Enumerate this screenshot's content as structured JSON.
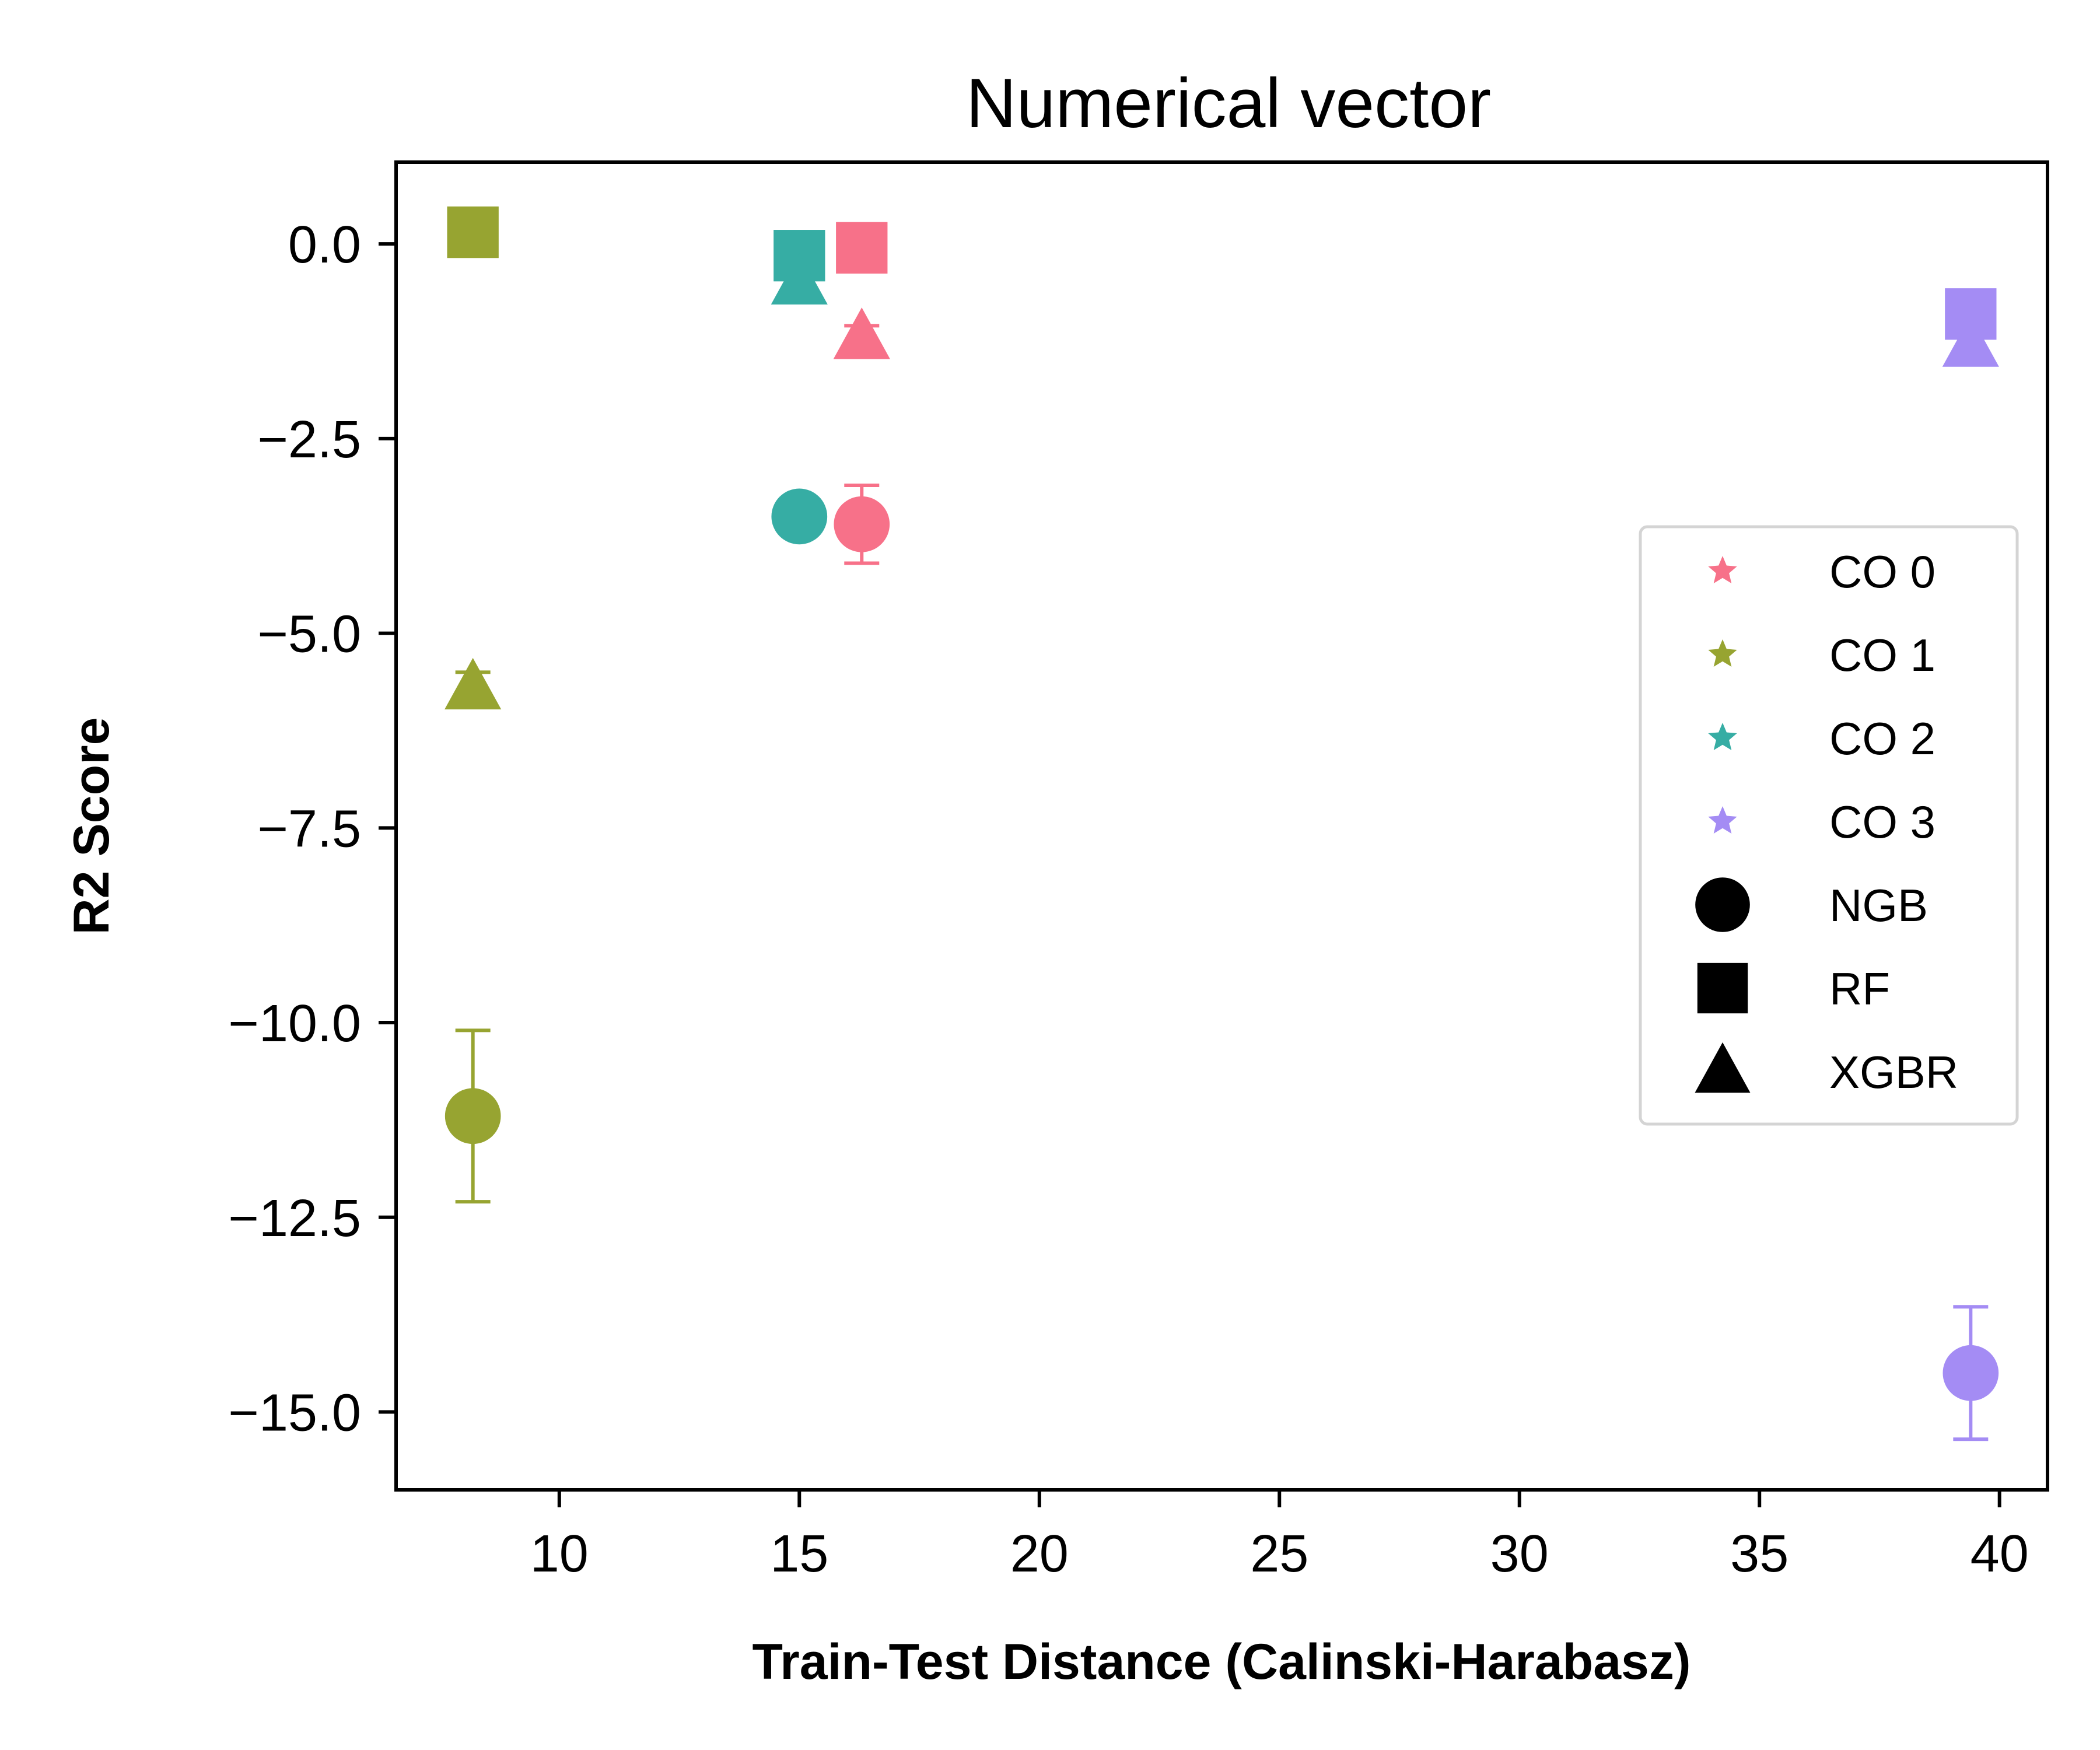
{
  "chart_data": {
    "type": "scatter",
    "title": "Numerical vector",
    "xlabel": "Train-Test Distance (Calinski-Harabasz)",
    "ylabel": "R2 Score",
    "xlim": [
      6.6,
      41.0
    ],
    "ylim": [
      -16.0,
      1.05
    ],
    "xticks": [
      10,
      15,
      20,
      25,
      30,
      35,
      40
    ],
    "yticks": [
      0.0,
      -2.5,
      -5.0,
      -7.5,
      -10.0,
      -12.5,
      -15.0
    ],
    "xtick_labels": [
      "10",
      "15",
      "20",
      "25",
      "30",
      "35",
      "40"
    ],
    "ytick_labels": [
      "0.0",
      "−2.5",
      "−5.0",
      "−7.5",
      "−10.0",
      "−12.5",
      "−15.0"
    ],
    "grid": false,
    "legend_position": "center-right",
    "groups": [
      {
        "name": "CO 0",
        "color": "#f77189"
      },
      {
        "name": "CO 1",
        "color": "#97a431"
      },
      {
        "name": "CO 2",
        "color": "#36ada4"
      },
      {
        "name": "CO 3",
        "color": "#a48cf4"
      }
    ],
    "models": [
      {
        "name": "NGB",
        "marker": "circle"
      },
      {
        "name": "RF",
        "marker": "square"
      },
      {
        "name": "XGBR",
        "marker": "triangle"
      }
    ],
    "points": [
      {
        "group": "CO 0",
        "model": "NGB",
        "x": 16.3,
        "y": -3.6,
        "err": 0.5
      },
      {
        "group": "CO 0",
        "model": "RF",
        "x": 16.3,
        "y": -0.05,
        "err": 0.1
      },
      {
        "group": "CO 0",
        "model": "XGBR",
        "x": 16.3,
        "y": -1.2,
        "err": 0.15
      },
      {
        "group": "CO 1",
        "model": "NGB",
        "x": 8.2,
        "y": -11.2,
        "err": 1.1
      },
      {
        "group": "CO 1",
        "model": "RF",
        "x": 8.2,
        "y": 0.15,
        "err": 0.05
      },
      {
        "group": "CO 1",
        "model": "XGBR",
        "x": 8.2,
        "y": -5.7,
        "err": 0.2
      },
      {
        "group": "CO 2",
        "model": "NGB",
        "x": 15.0,
        "y": -3.5,
        "err": 0.05
      },
      {
        "group": "CO 2",
        "model": "RF",
        "x": 15.0,
        "y": -0.15,
        "err": 0.05
      },
      {
        "group": "CO 2",
        "model": "XGBR",
        "x": 15.0,
        "y": -0.5,
        "err": 0.1
      },
      {
        "group": "CO 3",
        "model": "NGB",
        "x": 39.4,
        "y": -14.5,
        "err": 0.85
      },
      {
        "group": "CO 3",
        "model": "RF",
        "x": 39.4,
        "y": -0.9,
        "err": 0.1
      },
      {
        "group": "CO 3",
        "model": "XGBR",
        "x": 39.4,
        "y": -1.3,
        "err": 0.1
      }
    ],
    "legend": {
      "items": [
        {
          "label": "CO 0",
          "marker": "star",
          "color": "#f77189"
        },
        {
          "label": "CO 1",
          "marker": "star",
          "color": "#97a431"
        },
        {
          "label": "CO 2",
          "marker": "star",
          "color": "#36ada4"
        },
        {
          "label": "CO 3",
          "marker": "star",
          "color": "#a48cf4"
        },
        {
          "label": "NGB",
          "marker": "circle",
          "color": "#000000"
        },
        {
          "label": "RF",
          "marker": "square",
          "color": "#000000"
        },
        {
          "label": "XGBR",
          "marker": "triangle",
          "color": "#000000"
        }
      ]
    }
  }
}
